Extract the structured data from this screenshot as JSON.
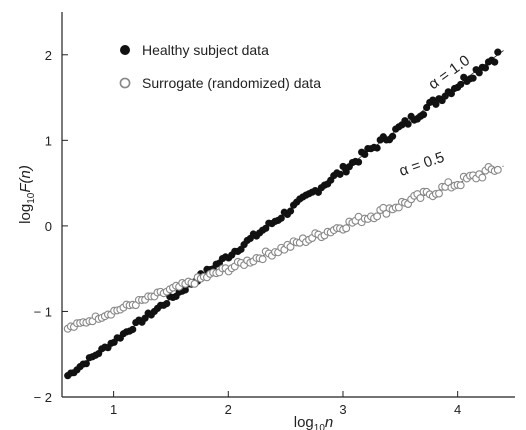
{
  "chart_data": {
    "type": "scatter",
    "xlabel_main": "log",
    "xlabel_sub": "10",
    "xlabel_var": "n",
    "ylabel_main": "log",
    "ylabel_sub": "10",
    "ylabel_var": "F(n)",
    "xlim": [
      0.55,
      4.5
    ],
    "ylim": [
      -2.0,
      2.5
    ],
    "xticks": [
      1,
      2,
      3,
      4
    ],
    "xtick_labels": [
      "1",
      "2",
      "3",
      "4"
    ],
    "yticks": [
      -2,
      -1,
      0,
      1,
      2
    ],
    "ytick_labels": [
      "− 2",
      "− 1",
      "0",
      "1",
      "2"
    ],
    "legend_position": "top-left",
    "grid": false,
    "series": [
      {
        "name": "Healthy subject data",
        "marker": "filled-circle",
        "color": "#111111",
        "fit_slope": 1.0,
        "fit_intercept": -2.35,
        "x_range": [
          0.6,
          4.35
        ],
        "n_points": 140,
        "points_x": [
          0.6,
          0.8,
          1.0,
          1.2,
          1.4,
          1.6,
          1.8,
          2.0,
          2.2,
          2.4,
          2.6,
          2.8,
          3.0,
          3.2,
          3.4,
          3.6,
          3.8,
          4.0,
          4.2,
          4.35
        ],
        "points_y": [
          -1.75,
          -1.55,
          -1.35,
          -1.15,
          -0.95,
          -0.75,
          -0.55,
          -0.35,
          -0.15,
          0.05,
          0.25,
          0.45,
          0.65,
          0.85,
          1.05,
          1.25,
          1.45,
          1.65,
          1.95,
          2.1
        ]
      },
      {
        "name": "Surrogate (randomized) data",
        "marker": "open-circle",
        "color": "#888888",
        "fit_slope": 0.5,
        "fit_intercept": -1.5,
        "x_range": [
          0.6,
          4.35
        ],
        "n_points": 140,
        "points_x": [
          0.6,
          0.8,
          1.0,
          1.2,
          1.4,
          1.6,
          1.8,
          2.0,
          2.2,
          2.4,
          2.6,
          2.8,
          3.0,
          3.2,
          3.4,
          3.6,
          3.8,
          4.0,
          4.2,
          4.35
        ],
        "points_y": [
          -1.2,
          -1.1,
          -1.0,
          -0.9,
          -0.8,
          -0.7,
          -0.6,
          -0.5,
          -0.4,
          -0.3,
          -0.2,
          -0.1,
          0.0,
          0.1,
          0.2,
          0.3,
          0.4,
          0.5,
          0.65,
          0.75
        ]
      }
    ],
    "annotations": [
      {
        "text": "α = 1.0",
        "x": 3.95,
        "y": 1.75,
        "angle_deg": -36
      },
      {
        "text": "α = 0.5",
        "x": 3.7,
        "y": 0.67,
        "angle_deg": -19
      }
    ]
  }
}
